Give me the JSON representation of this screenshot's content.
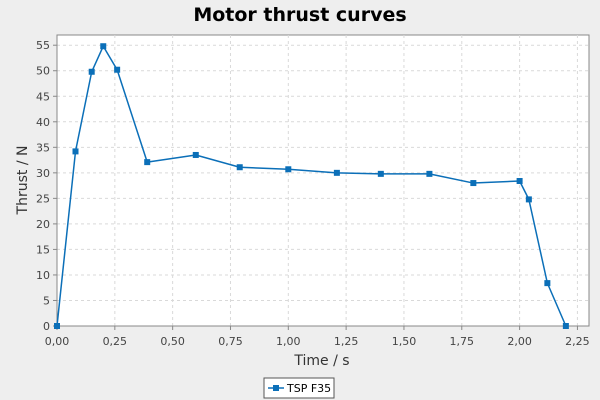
{
  "colors": {
    "background": "#eeeeee",
    "plot_background": "#ffffff",
    "grid": "#d9d9d9",
    "axis": "#888888",
    "series": "#0b6fb8"
  },
  "chart_data": {
    "type": "line",
    "title": "Motor thrust curves",
    "xlabel": "Time / s",
    "ylabel": "Thrust / N",
    "xlim": [
      0,
      2.3
    ],
    "ylim": [
      0,
      57
    ],
    "xticks": [
      0,
      0.25,
      0.5,
      0.75,
      1.0,
      1.25,
      1.5,
      1.75,
      2.0,
      2.25
    ],
    "xtick_labels": [
      "0,00",
      "0,25",
      "0,50",
      "0,75",
      "1,00",
      "1,25",
      "1,50",
      "1,75",
      "2,00",
      "2,25"
    ],
    "yticks": [
      0,
      5,
      10,
      15,
      20,
      25,
      30,
      35,
      40,
      45,
      50,
      55
    ],
    "ytick_labels": [
      "0",
      "5",
      "10",
      "15",
      "20",
      "25",
      "30",
      "35",
      "40",
      "45",
      "50",
      "55"
    ],
    "grid": true,
    "legend_position": "bottom-center",
    "series": [
      {
        "name": "TSP F35",
        "marker": "square",
        "x": [
          0.0,
          0.08,
          0.15,
          0.2,
          0.26,
          0.39,
          0.6,
          0.79,
          1.0,
          1.21,
          1.4,
          1.61,
          1.8,
          2.0,
          2.04,
          2.12,
          2.2
        ],
        "y": [
          0,
          34.2,
          49.8,
          54.8,
          50.2,
          32.1,
          33.5,
          31.1,
          30.7,
          30.0,
          29.8,
          29.8,
          28.0,
          28.4,
          24.8,
          8.4,
          0
        ]
      }
    ]
  }
}
